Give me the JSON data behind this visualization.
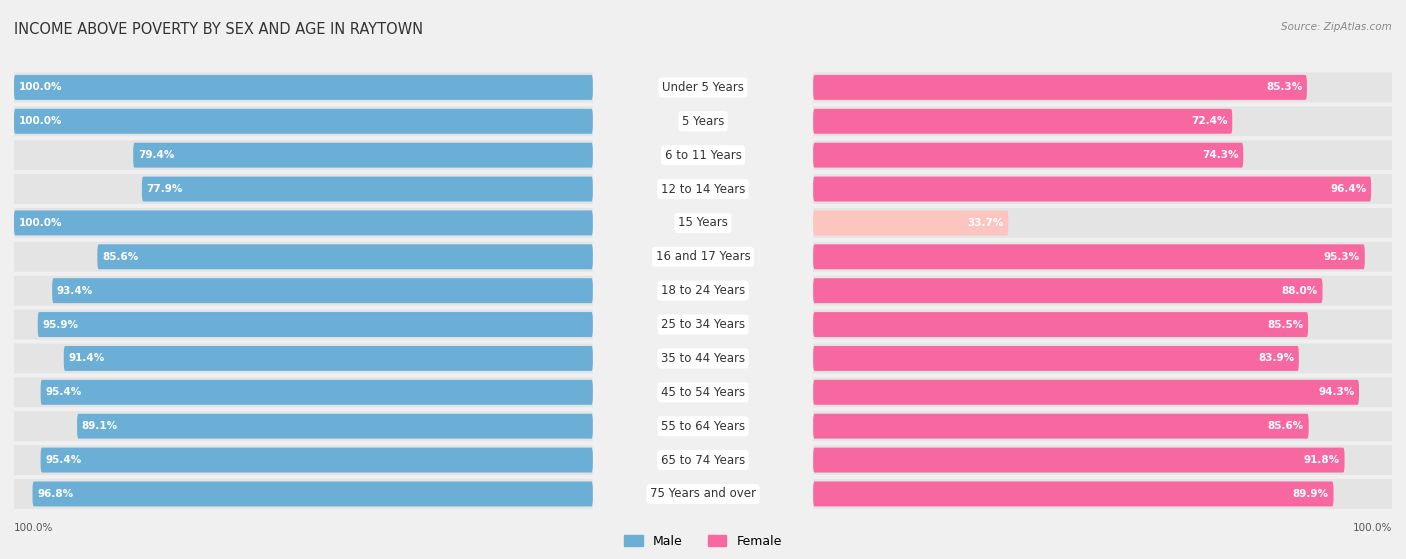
{
  "title": "INCOME ABOVE POVERTY BY SEX AND AGE IN RAYTOWN",
  "source": "Source: ZipAtlas.com",
  "categories": [
    "Under 5 Years",
    "5 Years",
    "6 to 11 Years",
    "12 to 14 Years",
    "15 Years",
    "16 and 17 Years",
    "18 to 24 Years",
    "25 to 34 Years",
    "35 to 44 Years",
    "45 to 54 Years",
    "55 to 64 Years",
    "65 to 74 Years",
    "75 Years and over"
  ],
  "male": [
    100.0,
    100.0,
    79.4,
    77.9,
    100.0,
    85.6,
    93.4,
    95.9,
    91.4,
    95.4,
    89.1,
    95.4,
    96.8
  ],
  "female": [
    85.3,
    72.4,
    74.3,
    96.4,
    33.7,
    95.3,
    88.0,
    85.5,
    83.9,
    94.3,
    85.6,
    91.8,
    89.9
  ],
  "male_color": "#6baed6",
  "male_light_color": "#c6dbef",
  "female_color": "#f768a1",
  "female_light_color": "#fcc5c0",
  "male_label": "Male",
  "female_label": "Female",
  "bg_color": "#f0f0f0",
  "bar_bg_color": "#e8e8e8",
  "row_bg_color": "#e4e4e4",
  "label_bg_color": "#ffffff",
  "title_fontsize": 10.5,
  "label_fontsize": 8.5,
  "value_fontsize": 7.5,
  "legend_fontsize": 9,
  "source_fontsize": 7.5,
  "max_val": 100.0,
  "bar_height": 0.72
}
